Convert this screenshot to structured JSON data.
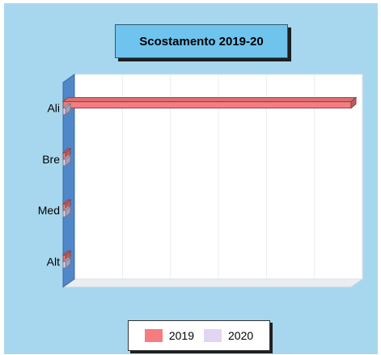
{
  "chart_data": {
    "type": "bar",
    "orientation": "horizontal",
    "title": "Scostamento 2019-20",
    "categories": [
      "Ali",
      "Bre",
      "Med",
      "Alt"
    ],
    "series": [
      {
        "name": "2019",
        "values": [
          100,
          0,
          0,
          0
        ],
        "color": "#f77b7f"
      },
      {
        "name": "2020",
        "values": [
          0,
          0,
          0,
          0
        ],
        "color": "#e2d5f2"
      }
    ],
    "xlim": [
      0,
      100
    ],
    "grid": true,
    "legend_position": "bottom"
  }
}
